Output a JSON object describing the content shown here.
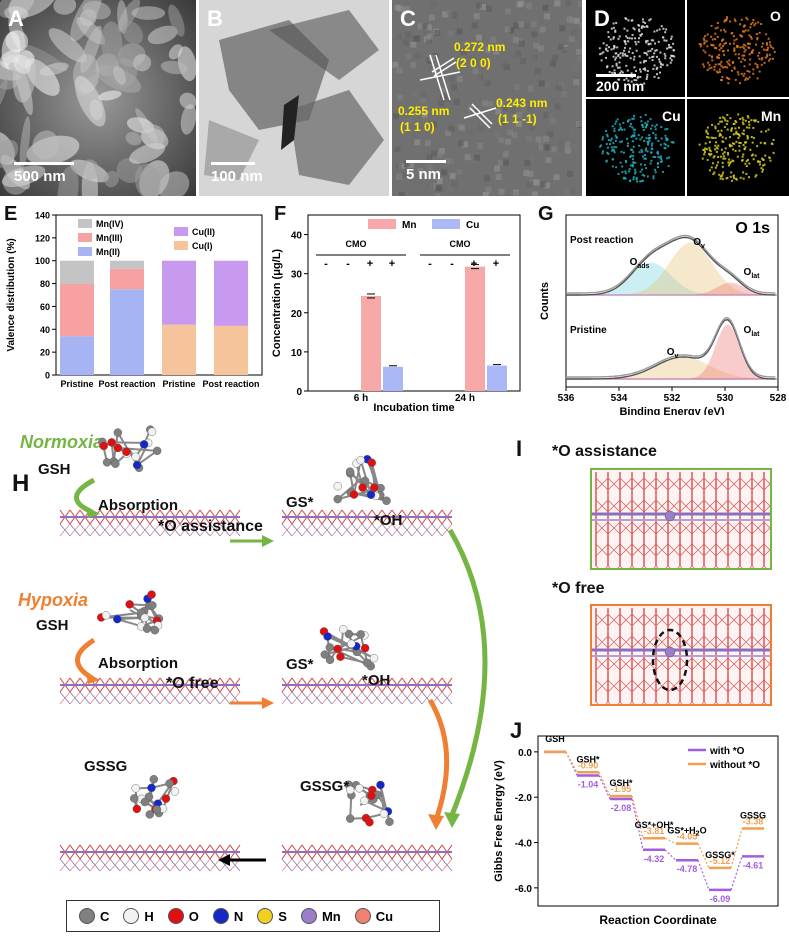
{
  "panels": {
    "A": {
      "letter": "A",
      "scale": "500 nm"
    },
    "B": {
      "letter": "B",
      "scale": "100 nm"
    },
    "C": {
      "letter": "C",
      "scale": "5 nm",
      "lattices": [
        {
          "d": "0.272 nm",
          "hkl": "(2 0 0)"
        },
        {
          "d": "0.255 nm",
          "hkl": "(1 1 0)"
        },
        {
          "d": "0.243 nm",
          "hkl": "(1 1 -1)"
        }
      ]
    },
    "D": {
      "letter": "D",
      "scale": "200 nm",
      "maps": [
        "O",
        "Cu",
        "Mn"
      ]
    },
    "E": {
      "letter": "E"
    },
    "F": {
      "letter": "F"
    },
    "G": {
      "letter": "G"
    },
    "H": {
      "letter": "H"
    },
    "I": {
      "letter": "I"
    },
    "J": {
      "letter": "J"
    }
  },
  "colors": {
    "mn4": "#c4c4c4",
    "mn3": "#f7a2a2",
    "mn2": "#a7b4f4",
    "cu2": "#c79af0",
    "cu1": "#f6c49b",
    "mnF": "#f7a8a8",
    "cuF": "#aab8f5",
    "green": "#74b544",
    "orange": "#ee7f33",
    "purple": "#a35de0",
    "orange2": "#f0a050"
  },
  "chart_data": [
    {
      "panel": "E",
      "type": "bar",
      "stacked": true,
      "ylabel": "Valence distribution (%)",
      "ylim": [
        0,
        140
      ],
      "yticks": [
        0,
        10,
        20,
        30,
        40,
        50,
        60,
        70,
        80,
        90,
        100,
        110,
        120,
        130,
        140
      ],
      "categories": [
        "Pristine",
        "Post reaction",
        "Pristine",
        "Post reaction"
      ],
      "legend": {
        "mn": [
          "Mn(IV)",
          "Mn(III)",
          "Mn(II)"
        ],
        "cu": [
          "Cu(II)",
          "Cu(I)"
        ]
      },
      "series": [
        {
          "name": "Mn(II)",
          "values": [
            34,
            75,
            null,
            null
          ]
        },
        {
          "name": "Mn(III)",
          "values": [
            46,
            18,
            null,
            null
          ]
        },
        {
          "name": "Mn(IV)",
          "values": [
            20,
            7,
            null,
            null
          ]
        },
        {
          "name": "Cu(I)",
          "values": [
            null,
            null,
            44,
            43
          ]
        },
        {
          "name": "Cu(II)",
          "values": [
            null,
            null,
            56,
            57
          ]
        }
      ]
    },
    {
      "panel": "F",
      "type": "bar",
      "ylabel": "Concentration (μg/L)",
      "xlabel": "Incubation time",
      "ylim": [
        0,
        45
      ],
      "yticks": [
        0,
        10,
        20,
        30,
        40
      ],
      "groups": [
        "6 h",
        "24 h"
      ],
      "cmo_label": "CMO",
      "cmo_signs": [
        "-",
        "-",
        "+",
        "+"
      ],
      "legend": [
        "Mn",
        "Cu"
      ],
      "series": [
        {
          "name": "Mn",
          "values": [
            24.3,
            31.8
          ]
        },
        {
          "name": "Cu",
          "values": [
            6.2,
            6.5
          ]
        }
      ]
    },
    {
      "panel": "G",
      "type": "line",
      "title": "O 1s",
      "xlabel": "Binding Energy (eV)",
      "ylabel": "Counts",
      "xlim": [
        536,
        528
      ],
      "xticks": [
        536,
        534,
        532,
        530,
        528
      ],
      "curves": [
        {
          "name": "Post reaction",
          "peaks": [
            {
              "label": "Oads",
              "center": 532.8
            },
            {
              "label": "Ov",
              "center": 531.3
            },
            {
              "label": "Olat",
              "center": 529.8
            }
          ]
        },
        {
          "name": "Pristine",
          "peaks": [
            {
              "label": "Ov",
              "center": 531.6
            },
            {
              "label": "Olat",
              "center": 529.9
            }
          ]
        }
      ],
      "labels": {
        "post": "Post reaction",
        "pristine": "Pristine",
        "oads": "O",
        "oads_sub": "ads",
        "ov": "O",
        "ov_sub": "v",
        "olat": "O",
        "olat_sub": "lat"
      }
    },
    {
      "panel": "J",
      "type": "line",
      "xlabel": "Reaction Coordinate",
      "ylabel": "Gibbs Free Energy (eV)",
      "ylim": [
        -6.8,
        0.7
      ],
      "yticks": [
        0.0,
        -2.0,
        -4.0,
        -6.0
      ],
      "ytick_labels": [
        "0.0",
        "-2.0",
        "-4.0",
        "-6.0"
      ],
      "steps": [
        "GSH",
        "GSH*",
        "GSH*",
        "GS*+OH*",
        "GS*+H2O",
        "GSSG*",
        "GSSG"
      ],
      "legend": [
        "with *O",
        "without *O"
      ],
      "series": [
        {
          "name": "with *O",
          "values": [
            0,
            -1.04,
            -2.08,
            -4.32,
            -4.78,
            -6.09,
            -4.61
          ]
        },
        {
          "name": "without *O",
          "values": [
            0,
            -0.9,
            -1.95,
            -3.81,
            -4.05,
            -5.12,
            -3.38
          ]
        }
      ]
    }
  ],
  "scheme": {
    "normoxia": "Normoxia",
    "hypoxia": "Hypoxia",
    "gsh": "GSH",
    "absorption": "Absorption",
    "o_assist": "*O assistance",
    "o_free": "*O free",
    "gs": "GS*",
    "oh": "*OH",
    "gssg": "GSSG",
    "gssg_star": "GSSG*"
  },
  "panelI": {
    "o_assist": "*O assistance",
    "o_free": "*O free"
  },
  "legend_atoms": [
    {
      "symbol": "C",
      "color": "#808080"
    },
    {
      "symbol": "H",
      "color": "#f2f2f2"
    },
    {
      "symbol": "O",
      "color": "#e01010"
    },
    {
      "symbol": "N",
      "color": "#1428c8"
    },
    {
      "symbol": "S",
      "color": "#f0d020"
    },
    {
      "symbol": "Mn",
      "color": "#9a7ec8"
    },
    {
      "symbol": "Cu",
      "color": "#f08070"
    }
  ]
}
